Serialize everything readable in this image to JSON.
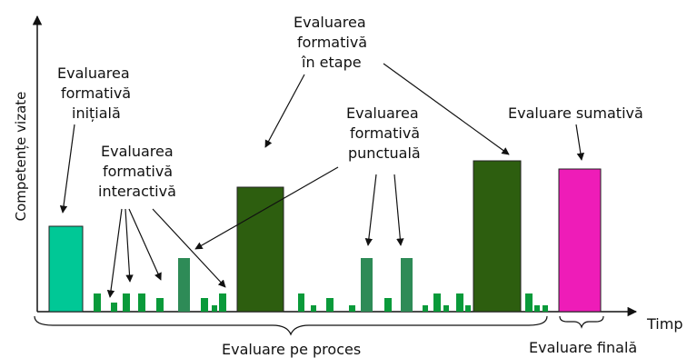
{
  "axis": {
    "y_label": "Competențe vizate",
    "x_label": "Timp"
  },
  "labels": {
    "initial": [
      "Evaluarea",
      "formativă",
      "inițială"
    ],
    "interactive": [
      "Evaluarea",
      "formativă",
      "interactivă"
    ],
    "stages": [
      "Evaluarea",
      "formativă",
      "în etape"
    ],
    "punctual": [
      "Evaluarea",
      "formativă",
      "punctuală"
    ],
    "summative": "Evaluare sumativă",
    "process": "Evaluare pe proces",
    "final": "Evaluare finală"
  },
  "colors": {
    "initial": "#00c896",
    "interactive": "#0a9a3a",
    "punctual": "#2e8b57",
    "stages": "#2d5e0f",
    "summative": "#ee1cb8"
  }
}
